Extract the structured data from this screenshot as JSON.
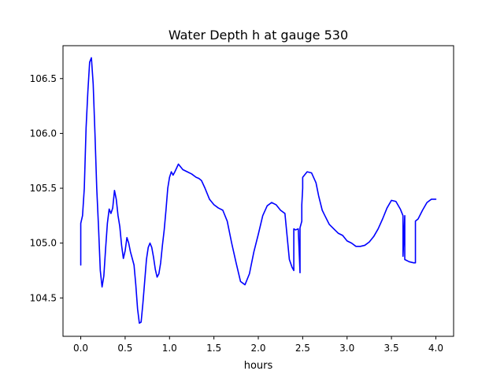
{
  "chart_data": {
    "type": "line",
    "title": "Water Depth h at gauge 530",
    "xlabel": "hours",
    "ylabel": "",
    "xlim": [
      -0.2,
      4.2
    ],
    "ylim": [
      104.15,
      106.8
    ],
    "xticks": [
      0.0,
      0.5,
      1.0,
      1.5,
      2.0,
      2.5,
      3.0,
      3.5,
      4.0
    ],
    "xtick_labels": [
      "0.0",
      "0.5",
      "1.0",
      "1.5",
      "2.0",
      "2.5",
      "3.0",
      "3.5",
      "4.0"
    ],
    "yticks": [
      104.5,
      105.0,
      105.5,
      106.0,
      106.5
    ],
    "ytick_labels": [
      "104.5",
      "105.0",
      "105.5",
      "106.0",
      "106.5"
    ],
    "grid": false,
    "series": [
      {
        "color": "#0000ff",
        "x": [
          0.0,
          0.0,
          0.02,
          0.04,
          0.06,
          0.08,
          0.1,
          0.12,
          0.14,
          0.16,
          0.18,
          0.2,
          0.22,
          0.24,
          0.26,
          0.28,
          0.3,
          0.32,
          0.34,
          0.36,
          0.38,
          0.4,
          0.42,
          0.44,
          0.46,
          0.48,
          0.5,
          0.52,
          0.54,
          0.56,
          0.58,
          0.6,
          0.62,
          0.64,
          0.66,
          0.68,
          0.7,
          0.72,
          0.74,
          0.76,
          0.78,
          0.8,
          0.82,
          0.84,
          0.86,
          0.88,
          0.9,
          0.92,
          0.94,
          0.96,
          0.98,
          1.0,
          1.02,
          1.04,
          1.06,
          1.1,
          1.15,
          1.2,
          1.25,
          1.3,
          1.33,
          1.36,
          1.4,
          1.45,
          1.5,
          1.55,
          1.6,
          1.65,
          1.7,
          1.75,
          1.8,
          1.85,
          1.9,
          1.95,
          2.0,
          2.05,
          2.1,
          2.15,
          2.2,
          2.25,
          2.3,
          2.35,
          2.38,
          2.4,
          2.4,
          2.42,
          2.45,
          2.47,
          2.47,
          2.49,
          2.49,
          2.5,
          2.5,
          2.55,
          2.6,
          2.65,
          2.68,
          2.72,
          2.75,
          2.8,
          2.85,
          2.9,
          2.95,
          3.0,
          3.05,
          3.1,
          3.15,
          3.2,
          3.25,
          3.3,
          3.35,
          3.4,
          3.45,
          3.5,
          3.55,
          3.6,
          3.63,
          3.63,
          3.65,
          3.65,
          3.7,
          3.75,
          3.77,
          3.77,
          3.8,
          3.85,
          3.9,
          3.95,
          4.0
        ],
        "y": [
          104.8,
          105.18,
          105.25,
          105.5,
          106.05,
          106.38,
          106.65,
          106.69,
          106.45,
          106.0,
          105.5,
          105.15,
          104.75,
          104.6,
          104.7,
          104.95,
          105.18,
          105.31,
          105.27,
          105.32,
          105.48,
          105.4,
          105.25,
          105.15,
          104.98,
          104.86,
          104.93,
          105.05,
          105.0,
          104.92,
          104.86,
          104.8,
          104.62,
          104.4,
          104.27,
          104.28,
          104.45,
          104.65,
          104.85,
          104.96,
          105.0,
          104.96,
          104.87,
          104.76,
          104.69,
          104.72,
          104.82,
          104.98,
          105.12,
          105.3,
          105.5,
          105.6,
          105.65,
          105.62,
          105.65,
          105.72,
          105.67,
          105.65,
          105.63,
          105.6,
          105.59,
          105.57,
          105.5,
          105.4,
          105.35,
          105.32,
          105.3,
          105.2,
          105.0,
          104.82,
          104.65,
          104.62,
          104.72,
          104.92,
          105.08,
          105.25,
          105.34,
          105.37,
          105.35,
          105.3,
          105.27,
          104.85,
          104.78,
          104.75,
          105.13,
          105.12,
          105.13,
          104.73,
          105.14,
          105.2,
          105.35,
          105.5,
          105.6,
          105.65,
          105.64,
          105.55,
          105.43,
          105.3,
          105.25,
          105.17,
          105.13,
          105.09,
          105.07,
          105.02,
          105.0,
          104.97,
          104.97,
          104.98,
          105.01,
          105.06,
          105.13,
          105.22,
          105.32,
          105.39,
          105.38,
          105.31,
          105.25,
          104.88,
          105.25,
          104.85,
          104.83,
          104.82,
          104.82,
          105.2,
          105.22,
          105.3,
          105.37,
          105.4,
          105.4
        ]
      }
    ]
  }
}
